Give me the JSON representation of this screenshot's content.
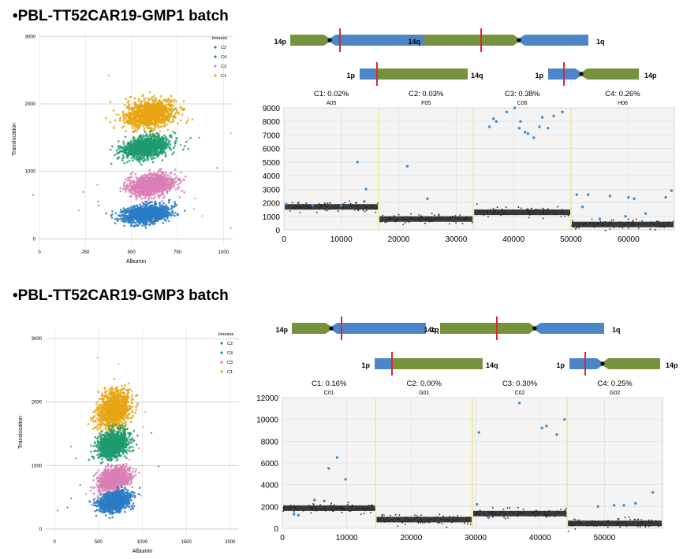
{
  "colors": {
    "C1": "#e8a412",
    "C2": "#1f9b6e",
    "C3": "#d97fb5",
    "C4": "#2a7bc5",
    "chrom14": "#76923c",
    "chrom1": "#4d86c8",
    "breakpoint": "#e0262c",
    "outlier": "#3a8fd8",
    "divider": "#f2e27a"
  },
  "panels": [
    {
      "title": "•PBL-TT52CAR19-GMP1 batch",
      "diagrams": {
        "d1": {
          "left": "14p",
          "right": "1q"
        },
        "d2": {
          "left": "14q",
          "right": "1q"
        },
        "d3": {
          "left": "1p",
          "right": "14q"
        },
        "d4": {
          "left": "1p",
          "right": "14p"
        }
      },
      "chart_data": [
        {
          "type": "scatter",
          "title": "",
          "xlabel": "Albumin",
          "ylabel": "Translocation",
          "xlim": [
            0,
            1050
          ],
          "ylim": [
            -100,
            3050
          ],
          "xticks": [
            0,
            250,
            500,
            750,
            1000
          ],
          "yticks": [
            0,
            1000,
            2000,
            3000
          ],
          "legend": {
            "title": "kmeans",
            "items": [
              "C2",
              "C4",
              "C3",
              "C1"
            ],
            "position": "top-right"
          },
          "clusters": [
            {
              "name": "C1",
              "center": [
                600,
                1850
              ],
              "spread": [
                80,
                150
              ]
            },
            {
              "name": "C2",
              "center": [
                580,
                1360
              ],
              "spread": [
                75,
                115
              ]
            },
            {
              "name": "C3",
              "center": [
                610,
                800
              ],
              "spread": [
                75,
                110
              ]
            },
            {
              "name": "C4",
              "center": [
                580,
                370
              ],
              "spread": [
                75,
                95
              ]
            }
          ]
        },
        {
          "type": "scatter",
          "xlim": [
            0,
            68000
          ],
          "ylim": [
            0,
            9000
          ],
          "xticks": [
            0,
            10000,
            20000,
            30000,
            40000,
            50000,
            60000
          ],
          "yticks": [
            0,
            1000,
            2000,
            3000,
            4000,
            5000,
            6000,
            7000,
            8000,
            9000
          ],
          "segments": [
            {
              "well": "A05",
              "label": "C1: 0.02%",
              "x": [
                0,
                16500
              ],
              "level": 1700
            },
            {
              "well": "F05",
              "label": "C2: 0.03%",
              "x": [
                16500,
                33000
              ],
              "level": 800
            },
            {
              "well": "C06",
              "label": "C3: 0.38%",
              "x": [
                33000,
                50000
              ],
              "level": 1300
            },
            {
              "well": "H06",
              "label": "C4: 0.26%",
              "x": [
                50000,
                68000
              ],
              "level": 400
            }
          ],
          "outliers": [
            [
              400,
              1900
            ],
            [
              2500,
              2000
            ],
            [
              5000,
              1800
            ],
            [
              8000,
              1950
            ],
            [
              10000,
              1800
            ],
            [
              12800,
              5000
            ],
            [
              14300,
              3000
            ],
            [
              14000,
              2100
            ],
            [
              21500,
              4700
            ],
            [
              25000,
              2300
            ],
            [
              27000,
              1100
            ],
            [
              35800,
              7600
            ],
            [
              36500,
              8200
            ],
            [
              37000,
              8000
            ],
            [
              38800,
              8700
            ],
            [
              40200,
              9000
            ],
            [
              41000,
              7500
            ],
            [
              41200,
              8000
            ],
            [
              42000,
              7200
            ],
            [
              42500,
              7100
            ],
            [
              43500,
              6800
            ],
            [
              44500,
              7600
            ],
            [
              45000,
              8300
            ],
            [
              46000,
              7500
            ],
            [
              47000,
              8400
            ],
            [
              48500,
              8700
            ],
            [
              51000,
              2600
            ],
            [
              52000,
              1700
            ],
            [
              53000,
              2600
            ],
            [
              55000,
              800
            ],
            [
              56800,
              2500
            ],
            [
              59500,
              1000
            ],
            [
              60000,
              2400
            ],
            [
              61000,
              2300
            ],
            [
              63000,
              1200
            ],
            [
              66500,
              2400
            ],
            [
              67500,
              2900
            ]
          ]
        }
      ]
    },
    {
      "title": "•PBL-TT52CAR19-GMP3 batch",
      "diagrams": {
        "d1": {
          "left": "14p",
          "right": "1q"
        },
        "d2": {
          "left": "14q",
          "right": "1q"
        },
        "d3": {
          "left": "1p",
          "right": "14q"
        },
        "d4": {
          "left": "1p",
          "right": "14p"
        }
      },
      "chart_data": [
        {
          "type": "scatter",
          "title": "",
          "xlabel": "Albumin",
          "ylabel": "Translocation",
          "xlim": [
            -100,
            2100
          ],
          "ylim": [
            -100,
            3150
          ],
          "xticks": [
            0,
            500,
            1000,
            1500,
            2000
          ],
          "yticks": [
            0,
            1000,
            2000,
            3000
          ],
          "legend": {
            "title": "kmeans",
            "items": [
              "C2",
              "C4",
              "C3",
              "C1"
            ],
            "position": "top-right"
          },
          "clusters": [
            {
              "name": "C1",
              "center": [
                680,
                1880
              ],
              "spread": [
                110,
                210
              ]
            },
            {
              "name": "C2",
              "center": [
                660,
                1330
              ],
              "spread": [
                105,
                150
              ]
            },
            {
              "name": "C3",
              "center": [
                680,
                780
              ],
              "spread": [
                100,
                130
              ]
            },
            {
              "name": "C4",
              "center": [
                680,
                430
              ],
              "spread": [
                100,
                110
              ]
            }
          ]
        },
        {
          "type": "scatter",
          "xlim": [
            0,
            59000
          ],
          "ylim": [
            0,
            12000
          ],
          "xticks": [
            0,
            10000,
            20000,
            30000,
            40000,
            50000
          ],
          "yticks": [
            0,
            2000,
            4000,
            6000,
            8000,
            10000,
            12000
          ],
          "segments": [
            {
              "well": "C01",
              "label": "C1: 0.16%",
              "x": [
                0,
                14500
              ],
              "level": 1850
            },
            {
              "well": "G01",
              "label": "C2: 0.00%",
              "x": [
                14500,
                29500
              ],
              "level": 800
            },
            {
              "well": "C02",
              "label": "C3: 0.30%",
              "x": [
                29500,
                44200
              ],
              "level": 1350
            },
            {
              "well": "G02",
              "label": "C4: 0.25%",
              "x": [
                44200,
                59000
              ],
              "level": 450
            }
          ],
          "outliers": [
            [
              1800,
              1300
            ],
            [
              2500,
              1200
            ],
            [
              5000,
              2600
            ],
            [
              6500,
              2500
            ],
            [
              7200,
              5500
            ],
            [
              8500,
              6500
            ],
            [
              9800,
              4500
            ],
            [
              30500,
              8800
            ],
            [
              30200,
              2200
            ],
            [
              32000,
              1000
            ],
            [
              36800,
              11500
            ],
            [
              40300,
              9200
            ],
            [
              41000,
              9400
            ],
            [
              42600,
              8600
            ],
            [
              43800,
              10000
            ],
            [
              49000,
              2000
            ],
            [
              51500,
              2100
            ],
            [
              53000,
              2100
            ],
            [
              54800,
              2300
            ],
            [
              57500,
              3300
            ]
          ]
        }
      ]
    }
  ]
}
